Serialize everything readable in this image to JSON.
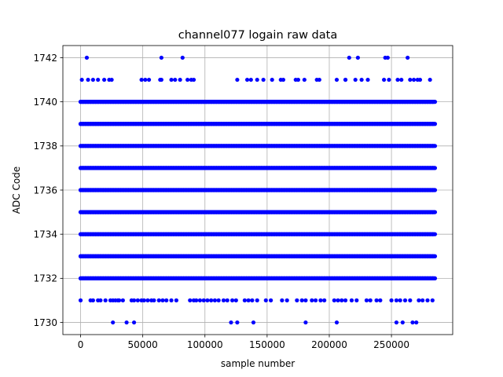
{
  "chart_data": {
    "type": "scatter",
    "title": "channel077 logain raw data",
    "xlabel": "sample number",
    "ylabel": "ADC Code",
    "xlim": [
      -14250,
      299250
    ],
    "ylim": [
      1729.45,
      1742.55
    ],
    "x_ticks": [
      0,
      50000,
      100000,
      150000,
      200000,
      250000
    ],
    "x_tick_labels": [
      "0",
      "50000",
      "100000",
      "150000",
      "200000",
      "250000"
    ],
    "y_ticks": [
      1730,
      1732,
      1734,
      1736,
      1738,
      1740,
      1742
    ],
    "y_tick_labels": [
      "1730",
      "1732",
      "1734",
      "1736",
      "1738",
      "1740",
      "1742"
    ],
    "grid": true,
    "marker": "circle",
    "color": "#0000ff",
    "x_range": [
      0,
      285000
    ],
    "dense_rows": [
      1732,
      1733,
      1734,
      1735,
      1736,
      1737,
      1738,
      1739,
      1740
    ],
    "sparse_points": [
      {
        "y": 1742,
        "x": [
          5000,
          65000,
          82000,
          216000,
          223000,
          245000,
          247000,
          263000
        ]
      },
      {
        "y": 1741,
        "x": [
          1000,
          6000,
          10000,
          14000,
          19000,
          23000,
          25000,
          49000,
          52000,
          55000,
          64000,
          65000,
          73000,
          76000,
          80000,
          86000,
          89000,
          91000,
          126000,
          134000,
          137000,
          142000,
          147000,
          154000,
          161000,
          163000,
          173000,
          175000,
          180000,
          190000,
          192000,
          206000,
          213000,
          213000,
          221000,
          226000,
          231000,
          244000,
          248000,
          255000,
          258000,
          265000,
          268000,
          271000,
          273000,
          281000
        ]
      },
      {
        "y": 1731,
        "x": [
          0,
          8000,
          10000,
          14000,
          16000,
          20000,
          24000,
          26000,
          28000,
          30000,
          31000,
          34000,
          41000,
          43000,
          46000,
          49000,
          51000,
          54000,
          57000,
          59000,
          63000,
          66000,
          69000,
          73000,
          77000,
          88000,
          91000,
          93000,
          96000,
          99000,
          102000,
          105000,
          108000,
          111000,
          115000,
          118000,
          122000,
          125000,
          132000,
          135000,
          138000,
          142000,
          149000,
          153000,
          162000,
          166000,
          174000,
          178000,
          181000,
          186000,
          189000,
          193000,
          196000,
          204000,
          207000,
          210000,
          213000,
          218000,
          222000,
          230000,
          233000,
          238000,
          241000,
          250000,
          254000,
          257000,
          261000,
          265000,
          272000,
          275000,
          279000,
          283000
        ]
      },
      {
        "y": 1730,
        "x": [
          26000,
          37000,
          43000,
          121000,
          126000,
          139000,
          181000,
          206000,
          254000,
          259000,
          267000,
          270000
        ]
      }
    ]
  }
}
